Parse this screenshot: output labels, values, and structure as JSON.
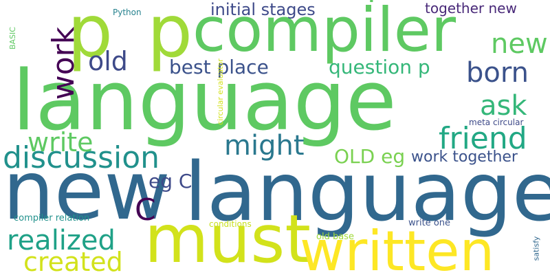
{
  "words": [
    {
      "text": "language",
      "color": "#5ec962"
    },
    {
      "text": "new",
      "color": "#31688e"
    },
    {
      "text": "language",
      "color": "#31688e"
    },
    {
      "text": "compiler",
      "color": "#5ec962"
    },
    {
      "text": "must",
      "color": "#d2e21b"
    },
    {
      "text": "written",
      "color": "#fde725"
    },
    {
      "text": "p",
      "color": "#a0da39"
    },
    {
      "text": "p",
      "color": "#a0da39"
    },
    {
      "text": "discussion",
      "color": "#21918c"
    },
    {
      "text": "friend",
      "color": "#22a884"
    },
    {
      "text": "realized",
      "color": "#1fa187"
    },
    {
      "text": "created",
      "color": "#d2e21b"
    },
    {
      "text": "write",
      "color": "#5ec962"
    },
    {
      "text": "might",
      "color": "#2a788e"
    },
    {
      "text": "new",
      "color": "#5ec962"
    },
    {
      "text": "born",
      "color": "#3b528b"
    },
    {
      "text": "ask",
      "color": "#35b779"
    },
    {
      "text": "old",
      "color": "#3e4a89"
    },
    {
      "text": "work",
      "color": "#440154"
    },
    {
      "text": "C",
      "color": "#440154"
    },
    {
      "text": "best place",
      "color": "#3b528b"
    },
    {
      "text": "question p",
      "color": "#35b779"
    },
    {
      "text": "OLD eg",
      "color": "#7ad151"
    },
    {
      "text": "work together",
      "color": "#3b528b"
    },
    {
      "text": "initial stages",
      "color": "#3e4a89"
    },
    {
      "text": "together new",
      "color": "#482878"
    },
    {
      "text": "eg C",
      "color": "#3e4a89"
    },
    {
      "text": "compiler relation",
      "color": "#21918c"
    },
    {
      "text": "old base",
      "color": "#a0da39"
    },
    {
      "text": "write one",
      "color": "#3b528b"
    },
    {
      "text": "meta circular",
      "color": "#3e4a89"
    },
    {
      "text": "conditions",
      "color": "#c8e020"
    },
    {
      "text": "circular evaluator",
      "color": "#d2e21b"
    },
    {
      "text": "Python",
      "color": "#26828e"
    },
    {
      "text": "BASIC",
      "color": "#5ec962"
    },
    {
      "text": "satisfy",
      "color": "#31688e"
    },
    {
      "text": ".",
      "color": "#5ec962"
    }
  ]
}
